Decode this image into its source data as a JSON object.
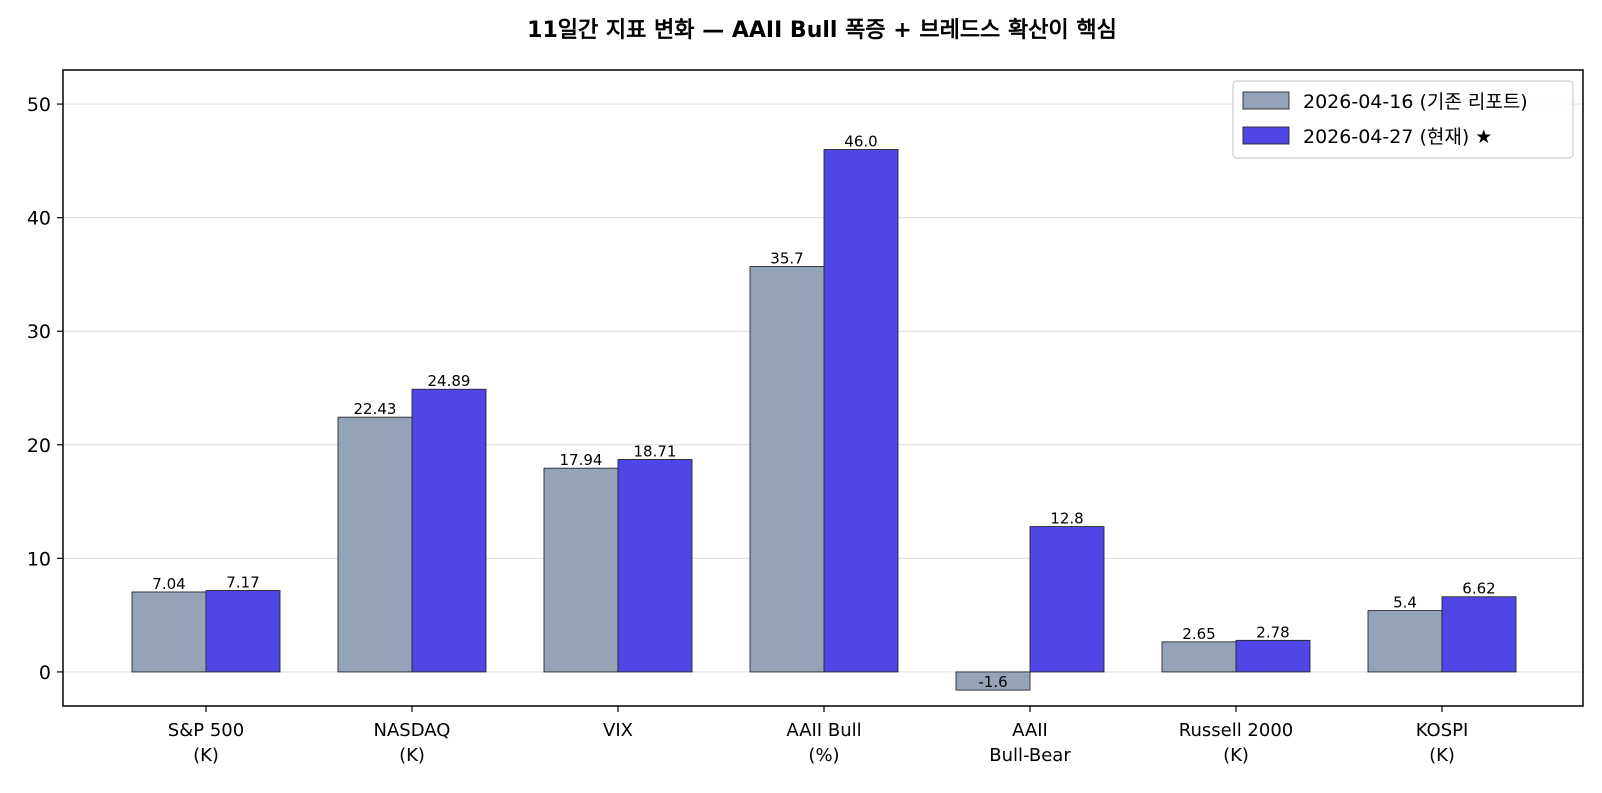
{
  "chart_data": {
    "type": "bar",
    "title": "11일간 지표 변화 — AAII Bull 폭증 + 브레드스 확산이 핵심",
    "xlabel": "",
    "ylabel": "",
    "ylim": [
      -3,
      53
    ],
    "yticks": [
      0,
      10,
      20,
      30,
      40,
      50
    ],
    "grid": "y",
    "legend_position": "top-right",
    "categories": [
      [
        "S&P 500",
        "(K)"
      ],
      [
        "NASDAQ",
        "(K)"
      ],
      [
        "VIX"
      ],
      [
        "AAII Bull",
        "(%)"
      ],
      [
        "AAII",
        "Bull-Bear"
      ],
      [
        "Russell 2000",
        "(K)"
      ],
      [
        "KOSPI",
        "(K)"
      ]
    ],
    "series": [
      {
        "name": "2026-04-16 (기존 리포트)",
        "color": "#94a3b8",
        "values": [
          7.04,
          22.43,
          17.94,
          35.7,
          -1.6,
          2.65,
          5.4
        ]
      },
      {
        "name": "2026-04-27 (현재) ★",
        "color": "#4f46e5",
        "values": [
          7.17,
          24.89,
          18.71,
          46.0,
          12.8,
          2.78,
          6.62
        ]
      }
    ]
  }
}
